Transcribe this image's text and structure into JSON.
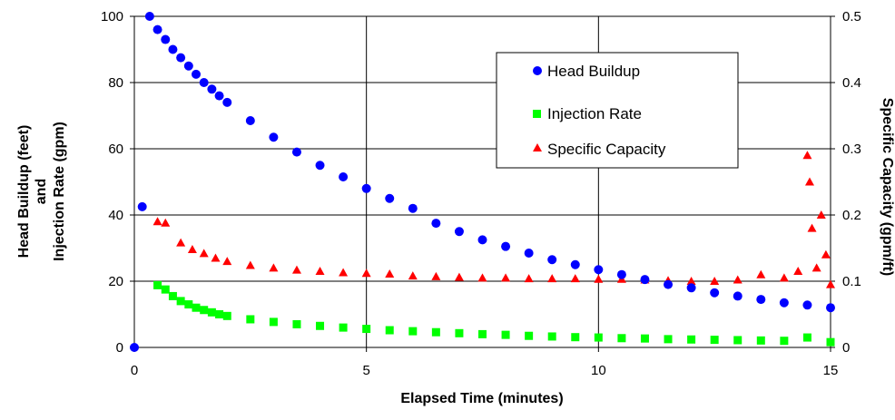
{
  "chart_data": {
    "type": "scatter",
    "xlabel": "Elapsed Time (minutes)",
    "ylabel_left_line1": "Head Buildup (feet)",
    "ylabel_left_line2": "and",
    "ylabel_left_line3": "Injection Rate (gpm)",
    "ylabel_right": "Specific Capacity (gpm/ft)",
    "xlim": [
      0,
      15
    ],
    "ylim_left": [
      0,
      100
    ],
    "ylim_right": [
      0,
      0.5
    ],
    "x_ticks": [
      "0",
      "5",
      "10",
      "15"
    ],
    "y_left_ticks": [
      "0",
      "20",
      "40",
      "60",
      "80",
      "100"
    ],
    "y_right_ticks": [
      "0",
      "0.1",
      "0.2",
      "0.3",
      "0.4",
      "0.5"
    ],
    "grid": true,
    "legend_position": "top-right",
    "series": [
      {
        "name": "Head Buildup",
        "axis": "left",
        "marker": "circle",
        "color": "#0000ff",
        "x": [
          0,
          0.17,
          0.33,
          0.5,
          0.67,
          0.83,
          1.0,
          1.17,
          1.33,
          1.5,
          1.67,
          1.83,
          2.0,
          2.5,
          3.0,
          3.5,
          4.0,
          4.5,
          5.0,
          5.5,
          6.0,
          6.5,
          7.0,
          7.5,
          8.0,
          8.5,
          9.0,
          9.5,
          10.0,
          10.5,
          11.0,
          11.5,
          12.0,
          12.5,
          13.0,
          13.5,
          14.0,
          14.5,
          15.0
        ],
        "y": [
          0,
          42.5,
          100,
          96,
          93,
          90,
          87.5,
          85,
          82.5,
          80,
          78,
          76,
          74,
          68.5,
          63.5,
          59,
          55,
          51.5,
          48,
          45,
          42,
          37.5,
          35,
          32.5,
          30.5,
          28.5,
          26.5,
          25,
          23.5,
          22,
          20.5,
          19,
          18,
          16.5,
          15.5,
          14.5,
          13.5,
          12.8,
          12
        ]
      },
      {
        "name": "Injection Rate",
        "axis": "left",
        "marker": "square",
        "color": "#00ff00",
        "x": [
          0.5,
          0.67,
          0.83,
          1.0,
          1.17,
          1.33,
          1.5,
          1.67,
          1.83,
          2.0,
          2.5,
          3.0,
          3.5,
          4.0,
          4.5,
          5.0,
          5.5,
          6.0,
          6.5,
          7.0,
          7.5,
          8.0,
          8.5,
          9.0,
          9.5,
          10.0,
          10.5,
          11.0,
          11.5,
          12.0,
          12.5,
          13.0,
          13.5,
          14.0,
          14.5,
          15.0
        ],
        "y": [
          18.8,
          17.5,
          15.5,
          14,
          13,
          12,
          11.3,
          10.6,
          10,
          9.5,
          8.5,
          7.7,
          7,
          6.5,
          6,
          5.6,
          5.2,
          4.9,
          4.6,
          4.3,
          4,
          3.8,
          3.5,
          3.3,
          3.1,
          3,
          2.8,
          2.7,
          2.5,
          2.4,
          2.3,
          2.2,
          2.1,
          2,
          3,
          1.6
        ]
      },
      {
        "name": "Specific Capacity",
        "axis": "right",
        "marker": "triangle",
        "color": "#ff0000",
        "x": [
          0.5,
          0.67,
          1.0,
          1.25,
          1.5,
          1.75,
          2.0,
          2.5,
          3.0,
          3.5,
          4.0,
          4.5,
          5.0,
          5.5,
          6.0,
          6.5,
          7.0,
          7.5,
          8.0,
          8.5,
          9.0,
          9.5,
          10.0,
          10.5,
          11.0,
          11.5,
          12.0,
          12.5,
          13.0,
          13.5,
          14.0,
          14.3,
          14.5,
          14.55,
          14.6,
          14.7,
          14.8,
          14.9,
          15.0
        ],
        "y": [
          0.19,
          0.188,
          0.158,
          0.148,
          0.142,
          0.135,
          0.13,
          0.124,
          0.12,
          0.117,
          0.115,
          0.113,
          0.112,
          0.111,
          0.108,
          0.107,
          0.106,
          0.105,
          0.105,
          0.104,
          0.104,
          0.104,
          0.103,
          0.103,
          0.102,
          0.101,
          0.1,
          0.1,
          0.102,
          0.11,
          0.105,
          0.115,
          0.29,
          0.25,
          0.18,
          0.12,
          0.2,
          0.14,
          0.095
        ]
      }
    ]
  }
}
